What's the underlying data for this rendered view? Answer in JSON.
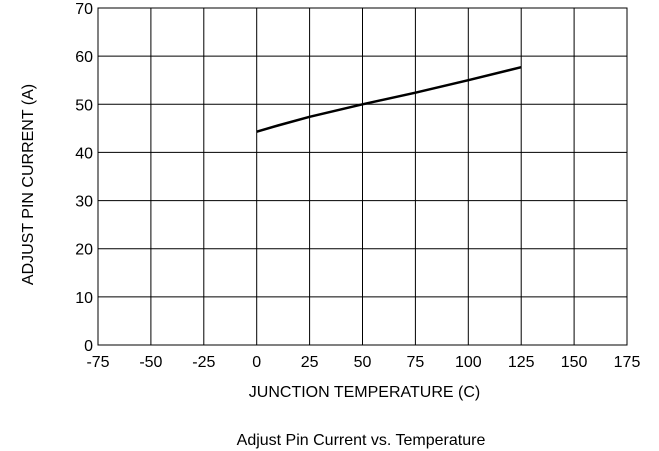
{
  "caption": "Adjust Pin Current vs. Temperature",
  "chart_data": {
    "type": "line",
    "title": "",
    "xlabel": "JUNCTION TEMPERATURE (C)",
    "ylabel": "ADJUST PIN CURRENT (A)",
    "xlim": [
      -75,
      175
    ],
    "ylim": [
      0,
      70
    ],
    "x_ticks": [
      -75,
      -50,
      -25,
      0,
      25,
      50,
      75,
      100,
      125,
      150,
      175
    ],
    "y_ticks": [
      0,
      10,
      20,
      30,
      40,
      50,
      60,
      70
    ],
    "x_tick_labels": [
      "-75",
      "-50",
      "-25",
      "0",
      "25",
      "50",
      "75",
      "100",
      "125",
      "150",
      "175"
    ],
    "y_tick_labels": [
      "0",
      "10",
      "20",
      "30",
      "40",
      "50",
      "60",
      "70"
    ],
    "grid": true,
    "series": [
      {
        "x": [
          0,
          10,
          25,
          50,
          75,
          100,
          125
        ],
        "y": [
          44.3,
          45.6,
          47.4,
          50.0,
          52.4,
          55.0,
          57.7
        ],
        "color": "#000000"
      }
    ]
  }
}
